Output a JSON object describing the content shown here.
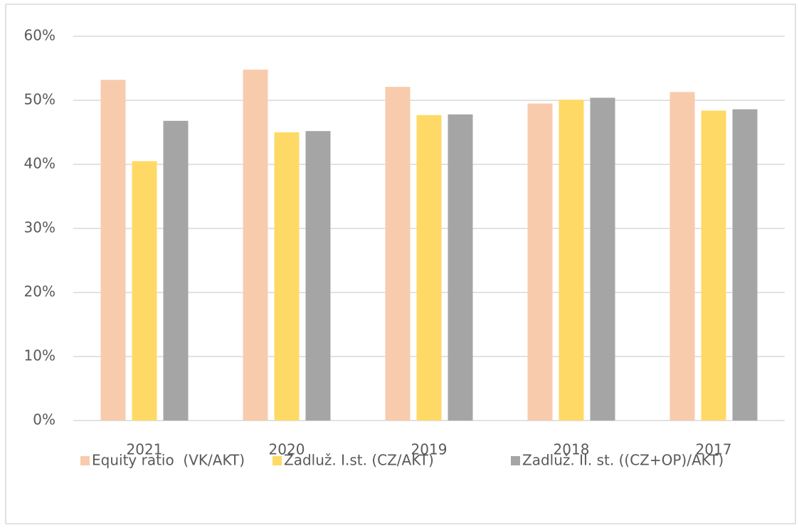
{
  "chart_data": {
    "type": "bar",
    "categories": [
      "2021",
      "2020",
      "2019",
      "2018",
      "2017"
    ],
    "series": [
      {
        "name": "Equity ratio  (VK/AKT)",
        "color": "#f8cbad",
        "values": [
          53.2,
          54.8,
          52.1,
          49.5,
          51.3
        ]
      },
      {
        "name": "Zadluž. I.st. (CZ/AKT)",
        "color": "#ffd966",
        "values": [
          40.5,
          45.0,
          47.7,
          50.1,
          48.4
        ]
      },
      {
        "name": "Zadluž. II. st. ((CZ+OP)/AKT)",
        "color": "#a5a5a5",
        "values": [
          46.8,
          45.2,
          47.8,
          50.4,
          48.6
        ]
      }
    ],
    "ylim": [
      0,
      60
    ],
    "yticks": [
      {
        "value": 0,
        "label": "0%"
      },
      {
        "value": 10,
        "label": "10%"
      },
      {
        "value": 20,
        "label": "20%"
      },
      {
        "value": 30,
        "label": "30%"
      },
      {
        "value": 40,
        "label": "40%"
      },
      {
        "value": 50,
        "label": "50%"
      },
      {
        "value": 60,
        "label": "60%"
      }
    ],
    "grid": true,
    "legend": "bottom"
  }
}
